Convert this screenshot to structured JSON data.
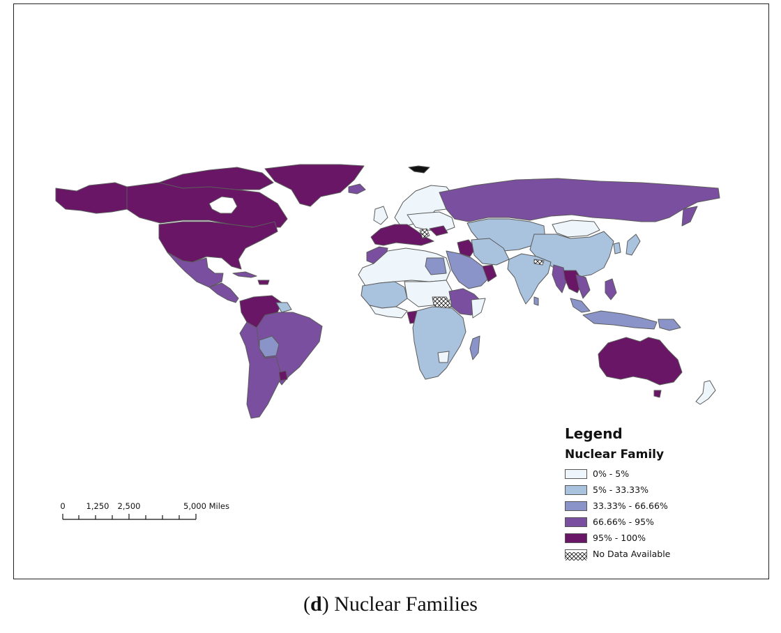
{
  "legend": {
    "title": "Legend",
    "subtitle": "Nuclear Family",
    "items": [
      {
        "label": "0% - 5%",
        "color": "#eef6fb",
        "pattern": false
      },
      {
        "label": "5% - 33.33%",
        "color": "#a9c2de",
        "pattern": false
      },
      {
        "label": "33.33% - 66.66%",
        "color": "#8b94c9",
        "pattern": false
      },
      {
        "label": "66.66% - 95%",
        "color": "#7b4fa0",
        "pattern": false
      },
      {
        "label": "95% - 100%",
        "color": "#6a1666",
        "pattern": false
      },
      {
        "label": "No Data Available",
        "color": "#ffffff",
        "pattern": true
      }
    ]
  },
  "scale_bar": {
    "labels": [
      "0",
      "1,250",
      "2,500",
      "5,000 Miles"
    ]
  },
  "caption": {
    "panel": "d",
    "text": "Nuclear Families"
  },
  "colors": {
    "border": "#555555",
    "ocean": "#ffffff"
  }
}
